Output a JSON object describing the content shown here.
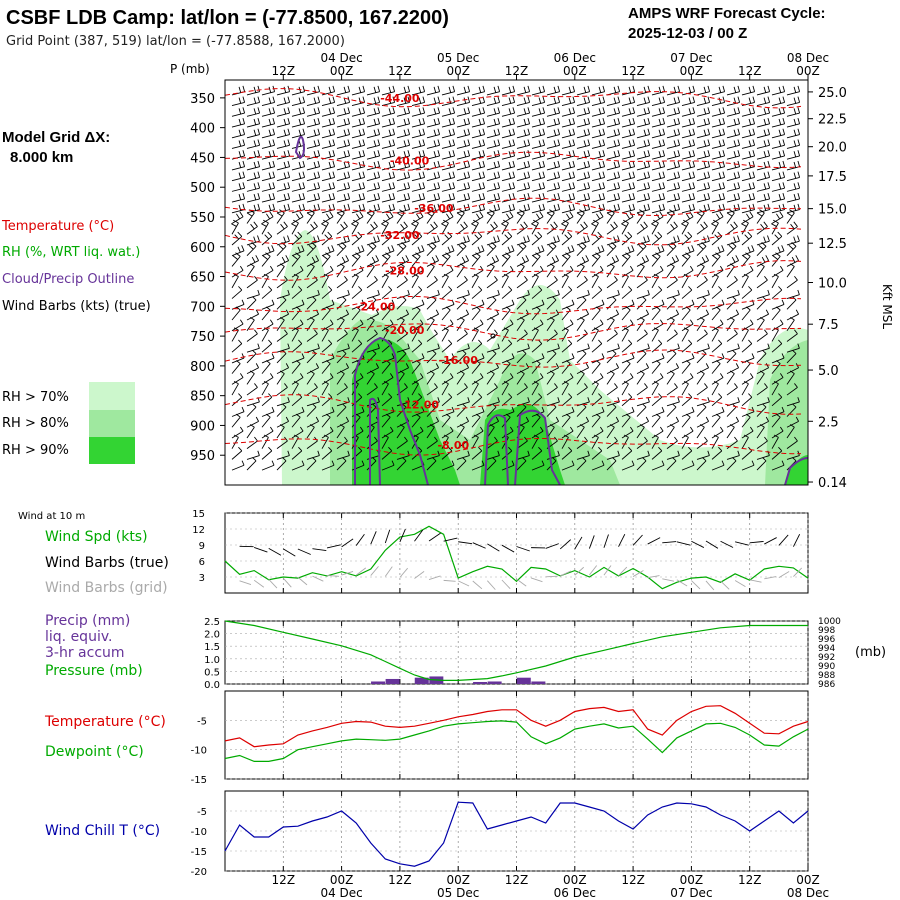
{
  "header": {
    "title": "CSBF LDB Camp:  lat/lon = (-77.8500, 167.2200)",
    "subtitle": "Grid Point (387, 519) lat/lon = (-77.8588, 167.2000)",
    "cycle_label": "AMPS WRF Forecast Cycle:",
    "cycle_value": "2025-12-03 / 00  Z"
  },
  "sidebar": {
    "grid_label": "Model Grid ΔX:",
    "grid_value": "8.000 km",
    "legend_temperature": "Temperature (°C)",
    "legend_rh": "RH (%, WRT liq. wat.)",
    "legend_cloud": "Cloud/Precip Outline",
    "legend_wind": "Wind Barbs (kts) (true)",
    "rh_levels": [
      {
        "label": "RH > 70%",
        "color": "#ccf7cc"
      },
      {
        "label": "RH > 80%",
        "color": "#9fe89f"
      },
      {
        "label": "RH > 90%",
        "color": "#33d433"
      }
    ]
  },
  "colors": {
    "temperature": "#dd0000",
    "rh": "#00aa00",
    "cloud": "#663399",
    "wind_grid": "#aaaaaa",
    "wind_chill": "#0000aa"
  },
  "time_axis": {
    "top_days": [
      "04 Dec",
      "05 Dec",
      "06 Dec",
      "07 Dec",
      "08 Dec"
    ],
    "ticks": [
      "12Z",
      "00Z",
      "12Z",
      "00Z",
      "12Z",
      "00Z",
      "12Z",
      "00Z",
      "12Z",
      "00Z"
    ],
    "bottom_days": [
      "04 Dec",
      "05 Dec",
      "06 Dec",
      "07 Dec",
      "08 Dec"
    ],
    "range_hours": [
      0,
      120
    ],
    "tick_hours": [
      12,
      24,
      36,
      48,
      60,
      72,
      84,
      96,
      108,
      120
    ]
  },
  "chart_data": [
    {
      "type": "heatmap",
      "name_key": "cross-section",
      "y_label_left": "P (mb)",
      "pressure_ticks": [
        350,
        400,
        450,
        500,
        550,
        600,
        650,
        700,
        750,
        800,
        850,
        900,
        950
      ],
      "p_range": [
        320,
        1000
      ],
      "height_label": "Kft MSL",
      "height_ticks": [
        "25.0",
        "22.5",
        "20.0",
        "17.5",
        "15.0",
        "12.5",
        "10.0",
        "7.5",
        "5.0",
        "2.5",
        "0.14"
      ],
      "height_tick_p": [
        340,
        385,
        432,
        481,
        536,
        594,
        660,
        730,
        807,
        893,
        995
      ],
      "isotherms": [
        {
          "label": "-44.00",
          "label_x": 36,
          "label_p": 350
        },
        {
          "label": "-40.00",
          "label_x": 38,
          "label_p": 455
        },
        {
          "label": "-36.00",
          "label_x": 43,
          "label_p": 535
        },
        {
          "label": "-32.00",
          "label_x": 36,
          "label_p": 580
        },
        {
          "label": "-28.00",
          "label_x": 37,
          "label_p": 640
        },
        {
          "label": "-24.00",
          "label_x": 31,
          "label_p": 700
        },
        {
          "label": "-20.00",
          "label_x": 37,
          "label_p": 740
        },
        {
          "label": "-16.00",
          "label_x": 48,
          "label_p": 790
        },
        {
          "label": "-12.00",
          "label_x": 40,
          "label_p": 865
        },
        {
          "label": "-8.00",
          "label_x": 47,
          "label_p": 933
        }
      ]
    },
    {
      "type": "line",
      "name_key": "wind",
      "title": "Wind at 10 m",
      "series_labels": [
        "Wind Spd (kts)",
        "Wind Barbs (true)",
        "Wind Barbs (grid)"
      ],
      "y_ticks": [
        3,
        6,
        9,
        12,
        15
      ],
      "ylim": [
        0,
        15
      ],
      "x": [
        0,
        3,
        6,
        9,
        12,
        15,
        18,
        21,
        24,
        27,
        30,
        33,
        36,
        39,
        42,
        45,
        48,
        51,
        54,
        57,
        60,
        63,
        66,
        69,
        72,
        75,
        78,
        81,
        84,
        87,
        90,
        93,
        96,
        99,
        102,
        105,
        108,
        111,
        114,
        117,
        120
      ],
      "values": [
        6,
        3.5,
        4.2,
        2.5,
        3,
        2.8,
        3.8,
        3.2,
        4,
        3.2,
        4.5,
        8,
        10.5,
        11,
        12.5,
        11,
        2.8,
        4,
        5,
        4.5,
        2.2,
        4.8,
        4.5,
        3.2,
        4.2,
        3,
        4.8,
        3.2,
        4.6,
        3,
        0.8,
        2,
        2.8,
        3,
        2,
        3.6,
        2.4,
        4.5,
        5,
        4.7,
        2.8
      ]
    },
    {
      "type": "line",
      "name_key": "precip-pressure",
      "series_labels": [
        "Precip (mm)",
        "liq. equiv.",
        "3-hr accum",
        "Pressure (mb)"
      ],
      "precip_ticks": [
        "0.0",
        "0.5",
        "1.0",
        "1.5",
        "2.0",
        "2.5"
      ],
      "precip_range": [
        0,
        2.5
      ],
      "pressure_ticks": [
        "986",
        "988",
        "990",
        "992",
        "994",
        "996",
        "998",
        "1000"
      ],
      "pressure_range": [
        986,
        1000
      ],
      "pressure_unit": "(mb)",
      "x": [
        0,
        6,
        12,
        18,
        24,
        30,
        33,
        36,
        39,
        42,
        45,
        48,
        51,
        54,
        57,
        60,
        66,
        72,
        78,
        84,
        90,
        96,
        102,
        108,
        114,
        120
      ],
      "pressure": [
        1000,
        999,
        997.5,
        996,
        994.5,
        992.5,
        991,
        989.5,
        988,
        987,
        986.8,
        986.8,
        987,
        987.2,
        987.8,
        988.5,
        990,
        992,
        993.5,
        995,
        996.5,
        997.5,
        998.5,
        999,
        999,
        999
      ],
      "precip_x": [
        31.5,
        34.5,
        40.5,
        43.5,
        52.5,
        55.5,
        61.5,
        64.5
      ],
      "precip": [
        0.1,
        0.2,
        0.25,
        0.3,
        0.08,
        0.1,
        0.25,
        0.1
      ]
    },
    {
      "type": "line",
      "name_key": "temperature",
      "series_labels": [
        "Temperature (°C)",
        "Dewpoint (°C)"
      ],
      "y_ticks": [
        -5,
        -10,
        -15
      ],
      "ylim": [
        -15,
        0
      ],
      "x": [
        0,
        3,
        6,
        9,
        12,
        15,
        18,
        21,
        24,
        27,
        30,
        33,
        36,
        39,
        42,
        45,
        48,
        51,
        54,
        57,
        60,
        63,
        66,
        69,
        72,
        75,
        78,
        81,
        84,
        87,
        90,
        93,
        96,
        99,
        102,
        105,
        108,
        111,
        114,
        117,
        120
      ],
      "temperature": [
        -8.5,
        -8,
        -9.5,
        -9.2,
        -9,
        -7.5,
        -6.8,
        -6.2,
        -5.5,
        -5.2,
        -5.3,
        -6,
        -6.2,
        -6,
        -5.5,
        -5,
        -4.4,
        -4,
        -3.5,
        -3.2,
        -3.2,
        -5,
        -6,
        -5,
        -3.5,
        -3,
        -2.8,
        -3.5,
        -3.2,
        -6.5,
        -7.5,
        -5,
        -3.5,
        -2.6,
        -2.5,
        -3.8,
        -5.5,
        -7.2,
        -7.3,
        -6,
        -5.2
      ],
      "dewpoint": [
        -11.5,
        -11,
        -12,
        -12,
        -11.5,
        -10,
        -9.5,
        -9,
        -8.5,
        -8.2,
        -8.3,
        -8.4,
        -8.2,
        -7.5,
        -6.8,
        -6,
        -5.6,
        -5.4,
        -5.2,
        -5.1,
        -5.3,
        -7.8,
        -9,
        -8,
        -6.5,
        -6,
        -5.6,
        -6.3,
        -6,
        -8.2,
        -10.5,
        -8,
        -6.8,
        -5.6,
        -5.5,
        -6.2,
        -7.5,
        -9.2,
        -9.4,
        -7.8,
        -6.5
      ]
    },
    {
      "type": "line",
      "name_key": "wind-chill",
      "series_labels": [
        "Wind Chill T (°C)"
      ],
      "y_ticks": [
        -5,
        -10,
        -15,
        -20
      ],
      "ylim": [
        -20,
        0
      ],
      "x": [
        0,
        3,
        6,
        9,
        12,
        15,
        18,
        21,
        24,
        27,
        30,
        33,
        36,
        39,
        42,
        45,
        48,
        51,
        54,
        57,
        60,
        63,
        66,
        69,
        72,
        75,
        78,
        81,
        84,
        87,
        90,
        93,
        96,
        99,
        102,
        105,
        108,
        111,
        114,
        117,
        120
      ],
      "values": [
        -15,
        -8.5,
        -11.5,
        -11.5,
        -9,
        -8.8,
        -7.5,
        -6.5,
        -5,
        -8,
        -13,
        -17,
        -18.2,
        -18.8,
        -17.5,
        -13,
        -2.8,
        -3,
        -9.5,
        -8.5,
        -7.5,
        -6.5,
        -8,
        -3,
        -3,
        -4,
        -5,
        -7.5,
        -9.5,
        -6,
        -4,
        -3,
        -3.2,
        -4,
        -6,
        -7.5,
        -10,
        -7.5,
        -5,
        -8,
        -5
      ]
    }
  ]
}
